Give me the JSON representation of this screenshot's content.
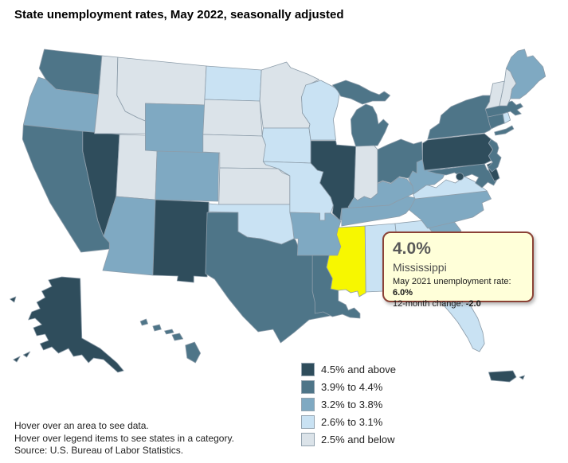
{
  "title": "State unemployment rates, May 2022, seasonally adjusted",
  "tooltip": {
    "rate": "4.0%",
    "state": "Mississippi",
    "prev_label": "May 2021 unemployment rate: ",
    "prev_value": "6.0%",
    "change_label": "12-month change: ",
    "change_value": "-2.0",
    "background": "#FFFFD9",
    "border_color": "#8B4236"
  },
  "legend": {
    "items": [
      {
        "key": "cat5",
        "label": "4.5% and above",
        "color": "#2F4D5C"
      },
      {
        "key": "cat4",
        "label": "3.9% to 4.4%",
        "color": "#4E7588"
      },
      {
        "key": "cat3",
        "label": "3.2% to 3.8%",
        "color": "#7FA9C2"
      },
      {
        "key": "cat2",
        "label": "2.6% to 3.1%",
        "color": "#C9E2F3"
      },
      {
        "key": "cat1",
        "label": "2.5% and below",
        "color": "#DBE3E9"
      }
    ]
  },
  "footer": {
    "line1": "Hover over an area to see data.",
    "line2": "Hover over legend items to see states in a category.",
    "line3": "Source: U.S. Bureau of Labor Statistics."
  },
  "map": {
    "stroke_color": "#8D9DAA",
    "highlight_color": "#F7F700",
    "highlighted_state": "MS",
    "states": [
      {
        "abbr": "WA",
        "name": "Washington",
        "category": "cat4"
      },
      {
        "abbr": "OR",
        "name": "Oregon",
        "category": "cat3"
      },
      {
        "abbr": "CA",
        "name": "California",
        "category": "cat4"
      },
      {
        "abbr": "NV",
        "name": "Nevada",
        "category": "cat5"
      },
      {
        "abbr": "ID",
        "name": "Idaho",
        "category": "cat1"
      },
      {
        "abbr": "MT",
        "name": "Montana",
        "category": "cat1"
      },
      {
        "abbr": "WY",
        "name": "Wyoming",
        "category": "cat3"
      },
      {
        "abbr": "UT",
        "name": "Utah",
        "category": "cat1"
      },
      {
        "abbr": "CO",
        "name": "Colorado",
        "category": "cat3"
      },
      {
        "abbr": "AZ",
        "name": "Arizona",
        "category": "cat3"
      },
      {
        "abbr": "NM",
        "name": "New Mexico",
        "category": "cat5"
      },
      {
        "abbr": "ND",
        "name": "North Dakota",
        "category": "cat2"
      },
      {
        "abbr": "SD",
        "name": "South Dakota",
        "category": "cat1"
      },
      {
        "abbr": "NE",
        "name": "Nebraska",
        "category": "cat1"
      },
      {
        "abbr": "KS",
        "name": "Kansas",
        "category": "cat1"
      },
      {
        "abbr": "OK",
        "name": "Oklahoma",
        "category": "cat2"
      },
      {
        "abbr": "TX",
        "name": "Texas",
        "category": "cat4"
      },
      {
        "abbr": "MN",
        "name": "Minnesota",
        "category": "cat1"
      },
      {
        "abbr": "IA",
        "name": "Iowa",
        "category": "cat2"
      },
      {
        "abbr": "MO",
        "name": "Missouri",
        "category": "cat2"
      },
      {
        "abbr": "AR",
        "name": "Arkansas",
        "category": "cat3"
      },
      {
        "abbr": "LA",
        "name": "Louisiana",
        "category": "cat4"
      },
      {
        "abbr": "WI",
        "name": "Wisconsin",
        "category": "cat2"
      },
      {
        "abbr": "IL",
        "name": "Illinois",
        "category": "cat5"
      },
      {
        "abbr": "MI",
        "name": "Michigan",
        "category": "cat4"
      },
      {
        "abbr": "IN",
        "name": "Indiana",
        "category": "cat1"
      },
      {
        "abbr": "OH",
        "name": "Ohio",
        "category": "cat4"
      },
      {
        "abbr": "KY",
        "name": "Kentucky",
        "category": "cat3"
      },
      {
        "abbr": "TN",
        "name": "Tennessee",
        "category": "cat3"
      },
      {
        "abbr": "MS",
        "name": "Mississippi",
        "category": "cat4"
      },
      {
        "abbr": "AL",
        "name": "Alabama",
        "category": "cat2"
      },
      {
        "abbr": "GA",
        "name": "Georgia",
        "category": "cat2"
      },
      {
        "abbr": "FL",
        "name": "Florida",
        "category": "cat2"
      },
      {
        "abbr": "SC",
        "name": "South Carolina",
        "category": "cat3"
      },
      {
        "abbr": "NC",
        "name": "North Carolina",
        "category": "cat3"
      },
      {
        "abbr": "VA",
        "name": "Virginia",
        "category": "cat2"
      },
      {
        "abbr": "WV",
        "name": "West Virginia",
        "category": "cat3"
      },
      {
        "abbr": "MD",
        "name": "Maryland",
        "category": "cat4"
      },
      {
        "abbr": "DE",
        "name": "Delaware",
        "category": "cat5"
      },
      {
        "abbr": "DC",
        "name": "District of Columbia",
        "category": "cat5"
      },
      {
        "abbr": "PA",
        "name": "Pennsylvania",
        "category": "cat5"
      },
      {
        "abbr": "NJ",
        "name": "New Jersey",
        "category": "cat4"
      },
      {
        "abbr": "NY",
        "name": "New York",
        "category": "cat4"
      },
      {
        "abbr": "CT",
        "name": "Connecticut",
        "category": "cat4"
      },
      {
        "abbr": "RI",
        "name": "Rhode Island",
        "category": "cat2"
      },
      {
        "abbr": "MA",
        "name": "Massachusetts",
        "category": "cat4"
      },
      {
        "abbr": "VT",
        "name": "Vermont",
        "category": "cat1"
      },
      {
        "abbr": "NH",
        "name": "New Hampshire",
        "category": "cat1"
      },
      {
        "abbr": "ME",
        "name": "Maine",
        "category": "cat3"
      },
      {
        "abbr": "AK",
        "name": "Alaska",
        "category": "cat5"
      },
      {
        "abbr": "HI",
        "name": "Hawaii",
        "category": "cat4"
      },
      {
        "abbr": "PR",
        "name": "Puerto Rico",
        "category": "cat5"
      }
    ]
  }
}
